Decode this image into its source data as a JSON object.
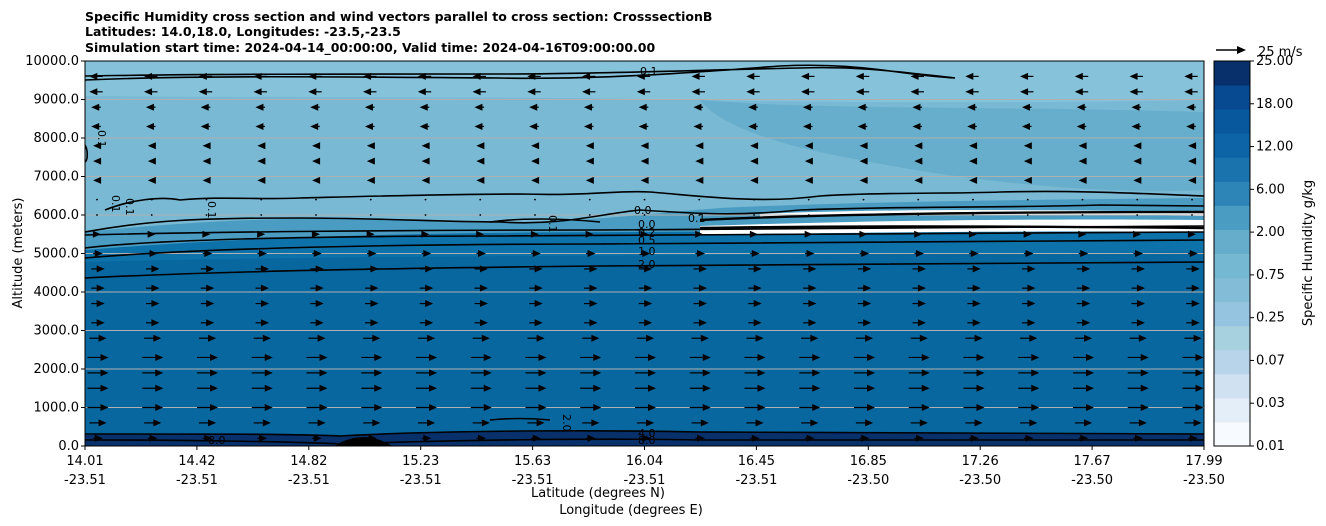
{
  "chart_data": {
    "type": "contour",
    "title_lines": [
      "Specific Humidity cross section and wind vectors parallel to cross section: CrosssectionB",
      "Latitudes: 14.0,18.0, Longitudes: -23.5,-23.5",
      "Simulation start time: 2024-04-14_00:00:00, Valid time: 2024-04-16T09:00:00.00"
    ],
    "ylabel": "Altitude (meters)",
    "xlabel_lat": "Latitude (degrees N)",
    "xlabel_lon": "Longitude (degrees E)",
    "ylim": [
      0,
      10000
    ],
    "yticks": [
      "0.0",
      "1000.0",
      "2000.0",
      "3000.0",
      "4000.0",
      "5000.0",
      "6000.0",
      "7000.0",
      "8000.0",
      "9000.0",
      "10000.0"
    ],
    "xticks_lat": [
      "14.01",
      "14.42",
      "14.82",
      "15.23",
      "15.63",
      "16.04",
      "16.45",
      "16.85",
      "17.26",
      "17.67",
      "17.99"
    ],
    "xticks_lon": [
      "-23.51",
      "-23.51",
      "-23.51",
      "-23.51",
      "-23.51",
      "-23.51",
      "-23.51",
      "-23.50",
      "-23.50",
      "-23.50",
      "-23.50"
    ],
    "colorbar": {
      "label": "Specific Humidity g/kg",
      "tick_labels": [
        "0.01",
        "0.03",
        "0.07",
        "0.25",
        "0.75",
        "2.00",
        "6.00",
        "12.00",
        "18.00",
        "25.00"
      ],
      "colors": [
        "#f7fbff",
        "#e3eef9",
        "#d0e1f2",
        "#b7d4ea",
        "#a8d1e0",
        "#94c4df",
        "#82bcd6",
        "#74b8d1",
        "#66adcc",
        "#4a9cc2",
        "#2d85b7",
        "#1a73ad",
        "#0d64a6",
        "#08589e",
        "#084a91",
        "#08306b"
      ]
    },
    "quiver_key": {
      "label": "25 m/s",
      "value": 25
    },
    "contour_labels": [
      "0.1",
      "0.1",
      "0.1",
      "0.1",
      "0.1",
      "0.1",
      "0.0",
      "0.1",
      "0.0",
      "0.2",
      "0.5",
      "1.0",
      "2.0",
      "2.0",
      "4.0",
      "8.0",
      "8.0"
    ],
    "wind_rows": [
      {
        "alt": 9600,
        "u": -3
      },
      {
        "alt": 9200,
        "u": -3
      },
      {
        "alt": 8800,
        "u": -2
      },
      {
        "alt": 8300,
        "u": -2
      },
      {
        "alt": 7800,
        "u": -1
      },
      {
        "alt": 7400,
        "u": -1
      },
      {
        "alt": 6900,
        "u": -1
      },
      {
        "alt": 6400,
        "u": 0
      },
      {
        "alt": 6000,
        "u": 0
      },
      {
        "alt": 5500,
        "u": 1
      },
      {
        "alt": 5000,
        "u": 2
      },
      {
        "alt": 4600,
        "u": 3
      },
      {
        "alt": 4100,
        "u": 3
      },
      {
        "alt": 3700,
        "u": 3
      },
      {
        "alt": 3200,
        "u": 3
      },
      {
        "alt": 2800,
        "u": 4
      },
      {
        "alt": 2300,
        "u": 5
      },
      {
        "alt": 1900,
        "u": 5
      },
      {
        "alt": 1500,
        "u": 5
      },
      {
        "alt": 1000,
        "u": 5
      },
      {
        "alt": 600,
        "u": 4
      },
      {
        "alt": 200,
        "u": 2
      }
    ]
  }
}
